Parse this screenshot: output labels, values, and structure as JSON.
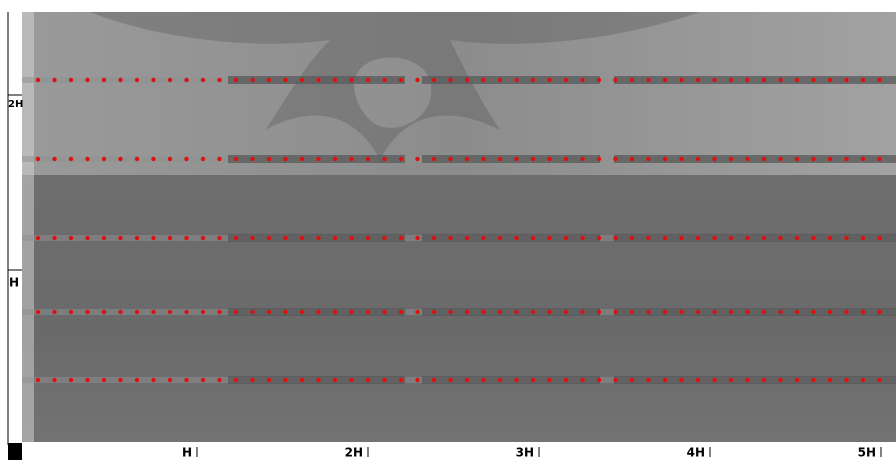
{
  "left_axis": {
    "labels": [
      "2H",
      "H"
    ]
  },
  "bottom_axis": {
    "labels": [
      "H",
      "2H",
      "3H",
      "4H",
      "5H"
    ]
  }
}
